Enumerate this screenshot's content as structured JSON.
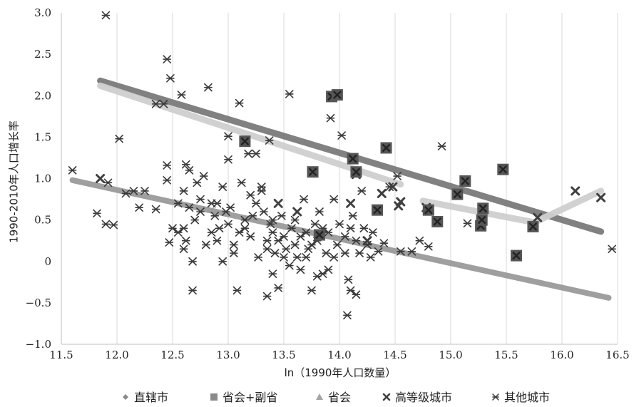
{
  "chart_data": {
    "type": "scatter",
    "title": "",
    "xlabel": "ln（1990年人口数量）",
    "ylabel": "1990-2010年人口增长率",
    "xlim": [
      11.5,
      16.5
    ],
    "ylim": [
      -1.0,
      3.0
    ],
    "x_ticks": [
      "11.5",
      "12.0",
      "12.5",
      "13.0",
      "13.5",
      "14.0",
      "14.5",
      "15.0",
      "15.5",
      "16.0",
      "16.5"
    ],
    "y_ticks": [
      "3.0",
      "2.5",
      "2.0",
      "1.5",
      "1.0",
      "0.5",
      "0",
      "−0.5",
      "−1.0"
    ],
    "grid": "x-vertical",
    "legend_position": "bottom",
    "colors": {
      "other": "#3a3a3a",
      "high": "#404040",
      "capital": "#555555",
      "trend_dark": "#7a7a7a",
      "trend_mid": "#9a9a9a",
      "trend_light": "#cfcfcf",
      "grid": "#d9d9d9"
    },
    "series": [
      {
        "name": "直辖市",
        "marker": "diamond",
        "points": []
      },
      {
        "name": "省会+副省",
        "marker": "square-x",
        "points": [
          [
            13.15,
            1.45
          ],
          [
            13.76,
            1.08
          ],
          [
            14.15,
            1.08
          ],
          [
            14.42,
            1.37
          ],
          [
            14.12,
            1.24
          ],
          [
            15.13,
            0.97
          ],
          [
            15.47,
            1.11
          ],
          [
            15.06,
            0.81
          ],
          [
            14.88,
            0.48
          ],
          [
            14.8,
            0.62
          ],
          [
            15.27,
            0.43
          ],
          [
            15.28,
            0.5
          ],
          [
            15.29,
            0.64
          ],
          [
            15.74,
            0.42
          ],
          [
            15.59,
            0.07
          ],
          [
            13.93,
            1.99
          ],
          [
            13.98,
            2.01
          ],
          [
            13.82,
            0.32
          ],
          [
            14.34,
            0.62
          ]
        ]
      },
      {
        "name": "省会",
        "marker": "triangle",
        "points": []
      },
      {
        "name": "高等级城市",
        "marker": "x",
        "points": [
          [
            11.85,
            1.0
          ],
          [
            14.15,
            1.05
          ],
          [
            14.38,
            0.82
          ],
          [
            14.55,
            0.72
          ],
          [
            14.53,
            0.67
          ],
          [
            14.78,
            0.65
          ],
          [
            16.12,
            0.85
          ],
          [
            16.35,
            0.77
          ],
          [
            15.78,
            0.53
          ],
          [
            14.1,
            0.7
          ],
          [
            14.48,
            0.9
          ],
          [
            13.45,
            0.7
          ],
          [
            13.62,
            0.6
          ],
          [
            14.25,
            0.25
          ]
        ]
      },
      {
        "name": "其他城市",
        "marker": "asterisk",
        "points": [
          [
            11.6,
            1.1
          ],
          [
            11.9,
            2.97
          ],
          [
            11.82,
            0.58
          ],
          [
            11.9,
            0.45
          ],
          [
            11.97,
            0.44
          ],
          [
            11.92,
            0.95
          ],
          [
            12.02,
            1.48
          ],
          [
            12.08,
            0.82
          ],
          [
            12.15,
            0.85
          ],
          [
            12.2,
            0.65
          ],
          [
            12.25,
            0.85
          ],
          [
            12.35,
            1.9
          ],
          [
            12.42,
            1.9
          ],
          [
            12.35,
            0.63
          ],
          [
            12.45,
            2.44
          ],
          [
            12.48,
            2.21
          ],
          [
            12.45,
            1.16
          ],
          [
            12.45,
            0.98
          ],
          [
            12.47,
            0.23
          ],
          [
            12.5,
            0.4
          ],
          [
            12.55,
            0.35
          ],
          [
            12.58,
            2.01
          ],
          [
            12.6,
            0.85
          ],
          [
            12.62,
            1.17
          ],
          [
            12.65,
            1.1
          ],
          [
            12.68,
            0.0
          ],
          [
            12.68,
            -0.35
          ],
          [
            12.62,
            0.25
          ],
          [
            12.6,
            0.15
          ],
          [
            12.72,
            0.95
          ],
          [
            12.75,
            0.75
          ],
          [
            12.78,
            1.03
          ],
          [
            12.82,
            2.1
          ],
          [
            12.85,
            0.7
          ],
          [
            12.88,
            0.55
          ],
          [
            12.9,
            0.25
          ],
          [
            12.92,
            0.4
          ],
          [
            12.95,
            0.9
          ],
          [
            12.98,
            0.6
          ],
          [
            13.0,
            1.51
          ],
          [
            13.0,
            1.23
          ],
          [
            13.02,
            0.65
          ],
          [
            13.05,
            0.2
          ],
          [
            13.08,
            -0.35
          ],
          [
            13.1,
            1.91
          ],
          [
            13.12,
            0.95
          ],
          [
            13.15,
            0.4
          ],
          [
            13.18,
            1.3
          ],
          [
            13.2,
            0.8
          ],
          [
            13.22,
            0.55
          ],
          [
            13.25,
            1.3
          ],
          [
            13.27,
            0.05
          ],
          [
            13.3,
            0.85
          ],
          [
            13.32,
            0.6
          ],
          [
            13.35,
            0.25
          ],
          [
            13.37,
            1.46
          ],
          [
            13.38,
            0.45
          ],
          [
            13.4,
            -0.15
          ],
          [
            13.42,
            0.1
          ],
          [
            13.45,
            -0.32
          ],
          [
            13.35,
            -0.42
          ],
          [
            13.48,
            0.55
          ],
          [
            13.5,
            0.3
          ],
          [
            13.52,
            0.15
          ],
          [
            13.55,
            2.02
          ],
          [
            13.57,
            0.4
          ],
          [
            13.6,
            0.2
          ],
          [
            13.62,
            0.05
          ],
          [
            13.65,
            -0.1
          ],
          [
            13.68,
            0.75
          ],
          [
            13.7,
            0.35
          ],
          [
            13.72,
            0.15
          ],
          [
            13.75,
            -0.35
          ],
          [
            13.78,
            0.45
          ],
          [
            13.8,
            0.25
          ],
          [
            13.82,
            0.6
          ],
          [
            13.85,
            -0.15
          ],
          [
            13.88,
            0.1
          ],
          [
            13.9,
            0.35
          ],
          [
            13.92,
            1.73
          ],
          [
            13.95,
            0.75
          ],
          [
            13.98,
            0.2
          ],
          [
            14.0,
            0.45
          ],
          [
            14.02,
            1.52
          ],
          [
            14.05,
            0.3
          ],
          [
            14.07,
            -0.65
          ],
          [
            14.08,
            -0.22
          ],
          [
            14.1,
            -0.35
          ],
          [
            14.12,
            0.55
          ],
          [
            14.15,
            -0.4
          ],
          [
            14.18,
            0.1
          ],
          [
            14.2,
            0.85
          ],
          [
            14.22,
            0.4
          ],
          [
            14.25,
            0.2
          ],
          [
            14.28,
            0.05
          ],
          [
            14.3,
            0.35
          ],
          [
            14.35,
            0.12
          ],
          [
            14.4,
            0.22
          ],
          [
            14.45,
            0.9
          ],
          [
            14.52,
            1.03
          ],
          [
            14.55,
            0.12
          ],
          [
            14.65,
            0.12
          ],
          [
            14.72,
            0.25
          ],
          [
            14.8,
            0.18
          ],
          [
            14.92,
            1.39
          ],
          [
            15.15,
            0.46
          ],
          [
            16.45,
            0.15
          ],
          [
            13.3,
            0.9
          ],
          [
            13.4,
            0.5
          ],
          [
            13.25,
            0.7
          ],
          [
            13.15,
            0.5
          ],
          [
            13.05,
            0.1
          ],
          [
            12.95,
            0.0
          ],
          [
            12.85,
            0.35
          ],
          [
            12.7,
            0.5
          ],
          [
            12.75,
            0.6
          ],
          [
            12.8,
            0.2
          ],
          [
            13.55,
            -0.05
          ],
          [
            13.6,
            0.5
          ],
          [
            13.7,
            0.05
          ],
          [
            13.85,
            0.4
          ],
          [
            13.95,
            0.05
          ],
          [
            14.05,
            0.1
          ],
          [
            13.75,
            0.2
          ],
          [
            13.65,
            0.3
          ],
          [
            13.5,
            0.05
          ],
          [
            13.45,
            0.25
          ],
          [
            13.4,
            0.35
          ],
          [
            13.35,
            0.15
          ],
          [
            13.2,
            0.3
          ],
          [
            13.1,
            0.35
          ],
          [
            13.0,
            0.45
          ],
          [
            12.9,
            0.7
          ],
          [
            12.65,
            0.65
          ],
          [
            12.6,
            0.4
          ],
          [
            12.55,
            0.7
          ],
          [
            14.15,
            0.25
          ],
          [
            14.1,
            0.4
          ],
          [
            13.9,
            -0.1
          ],
          [
            13.8,
            -0.18
          ]
        ]
      }
    ],
    "trendlines": [
      {
        "points": [
          [
            11.6,
            0.98
          ],
          [
            16.42,
            -0.44
          ]
        ],
        "color": "trend_mid",
        "width": 8
      },
      {
        "points": [
          [
            11.85,
            2.18
          ],
          [
            16.35,
            0.36
          ]
        ],
        "color": "trend_dark",
        "width": 9
      },
      {
        "points": [
          [
            11.85,
            2.12
          ],
          [
            14.55,
            0.93
          ]
        ],
        "color": "trend_light",
        "width": 9
      },
      {
        "points": [
          [
            14.75,
            0.73
          ],
          [
            15.75,
            0.47
          ],
          [
            16.35,
            0.85
          ]
        ],
        "color": "trend_light",
        "width": 9
      }
    ]
  }
}
